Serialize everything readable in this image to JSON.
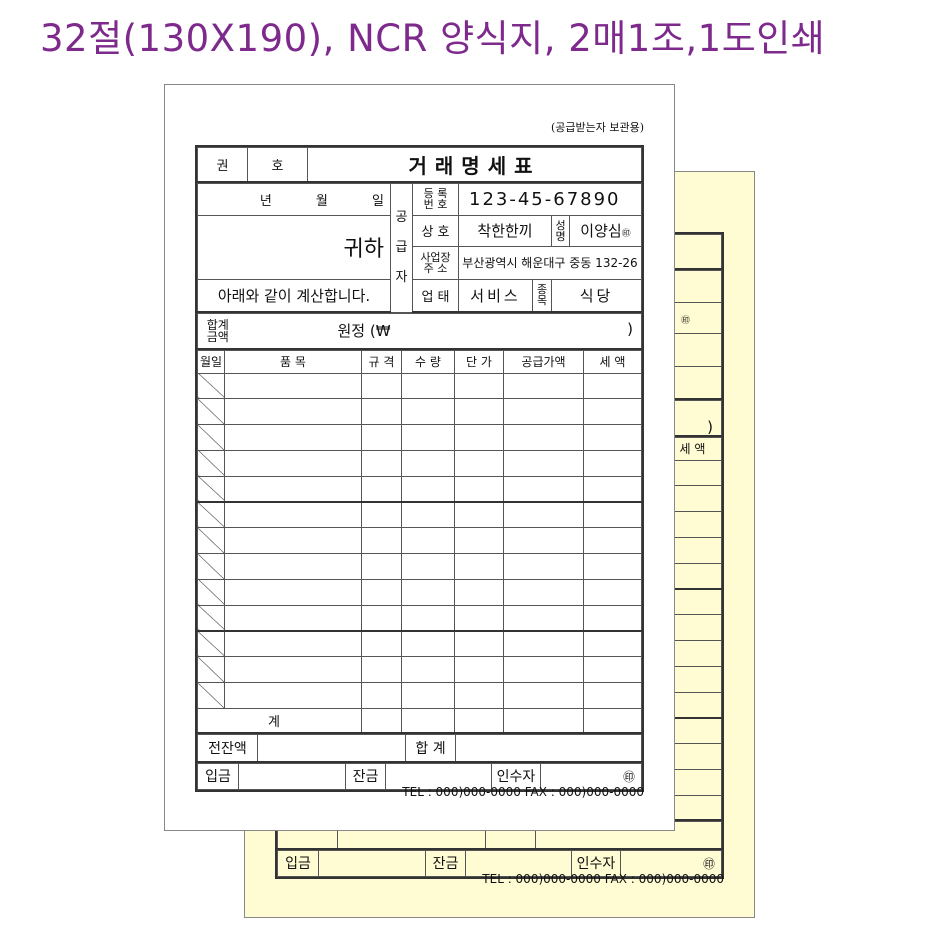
{
  "heading": "32절(130X190), NCR 양식지, 2매1조,1도인쇄",
  "colors": {
    "heading": "#7e2a8c",
    "copy_paper": "#fffbd2",
    "original_paper": "#ffffff"
  },
  "form": {
    "keep_label": "(공급받는자 보관용)",
    "book_label": "권",
    "number_label": "호",
    "title": "거래명세표",
    "date_labels": [
      "년",
      "월",
      "일"
    ],
    "recipient_suffix": "귀하",
    "statement": "아래와 같이 계산합니다.",
    "supplier_label": [
      "공",
      "급",
      "자"
    ],
    "reg_label": [
      "등 록",
      "번 호"
    ],
    "reg_no": "123-45-67890",
    "company_label": "상  호",
    "company": "착한한끼",
    "name_label": [
      "성",
      "명"
    ],
    "name": "이양심",
    "seal": "㊞",
    "address_label": [
      "사업장",
      "주  소"
    ],
    "address": "부산광역시 해운대구 중동 132-26",
    "business_label": "업  태",
    "business": "서비스",
    "item_label": [
      "종",
      "목"
    ],
    "item": "식당",
    "total_label": [
      "합계",
      "금액"
    ],
    "total_text": "원정 (₩",
    "total_close": ")",
    "columns": [
      "월일",
      "품          목",
      "규 격",
      "수 량",
      "단 가",
      "공급가액",
      "세  액"
    ],
    "subtotal_label": "계",
    "prev_balance_label": "전잔액",
    "sum_label": "합 계",
    "deposit_label": "입금",
    "balance_label": "잔금",
    "receiver_label": "인수자",
    "contact": "TEL : 000)000-0000   FAX : 000)000-0000"
  }
}
